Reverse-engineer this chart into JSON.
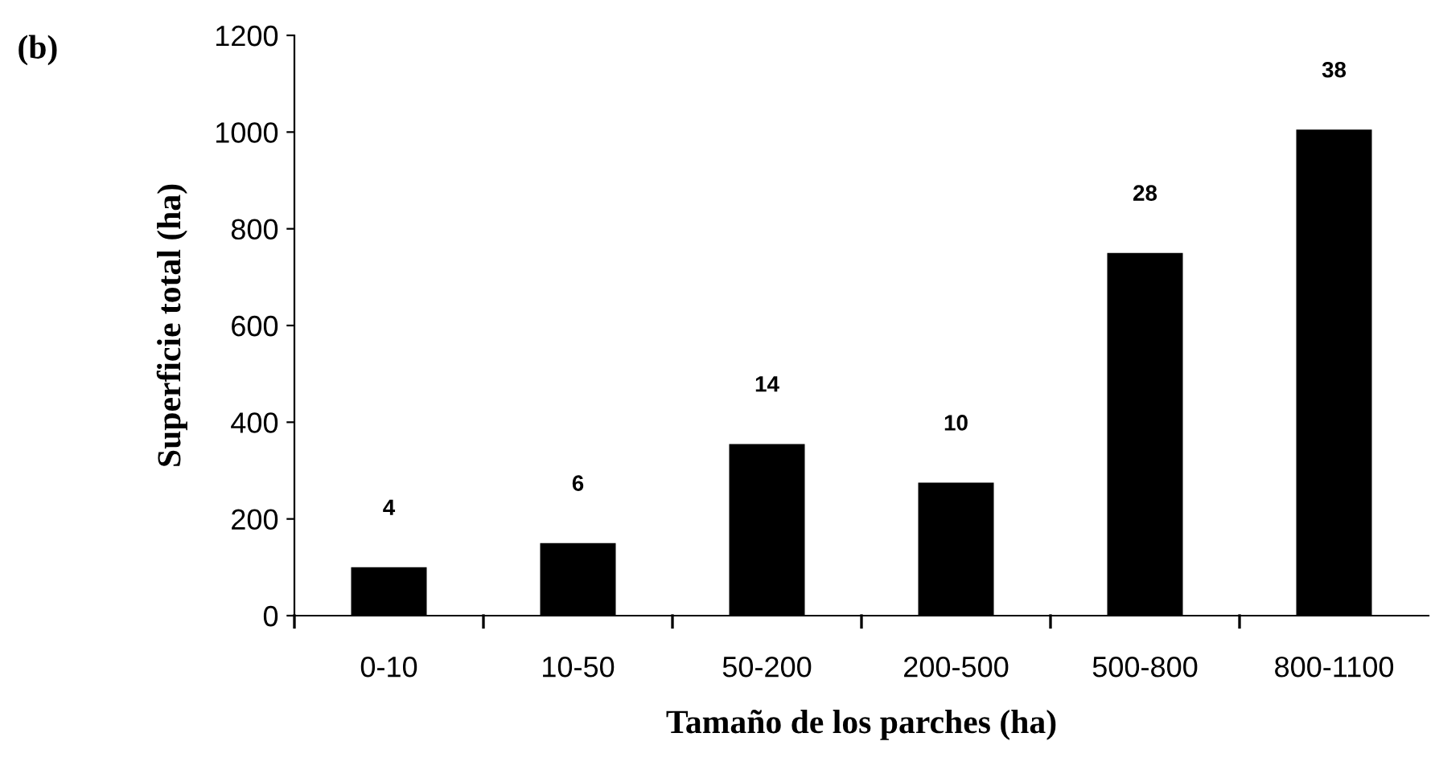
{
  "chart_data": {
    "type": "bar",
    "categories": [
      "0-10",
      "10-50",
      "50-200",
      "200-500",
      "500-800",
      "800-1100"
    ],
    "values": [
      100,
      150,
      355,
      275,
      750,
      1005
    ],
    "color": "#000000",
    "xlabel": "Tamaño de los parches (ha)",
    "ylabel": "Superficie total (ha)",
    "annotations": [
      "(b)",
      {
        "text": "4",
        "x": "0-10",
        "y": 100
      },
      {
        "text": "6",
        "x": "10-50",
        "y": 150
      },
      {
        "text": "14",
        "x": "50-200",
        "y": 355
      },
      {
        "text": "10",
        "x": "200-500",
        "y": 275
      },
      {
        "text": "28",
        "x": "500-800",
        "y": 750
      },
      {
        "text": "38",
        "x": "800-1100",
        "y": 1005
      }
    ],
    "ylim": [
      0,
      1200
    ],
    "yticks": [
      0,
      200,
      400,
      600,
      800,
      1000,
      1200
    ],
    "grid": false,
    "legend": false
  }
}
